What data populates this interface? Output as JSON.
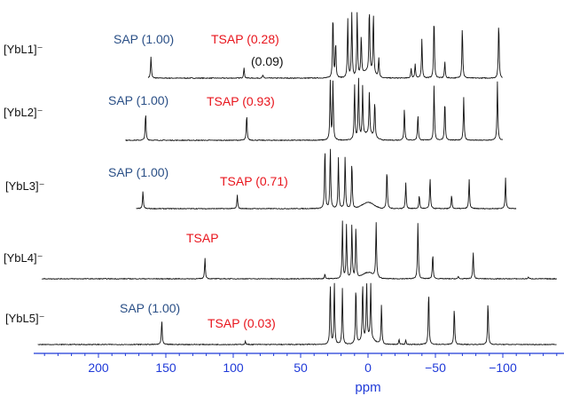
{
  "chart_data": {
    "type": "line",
    "title": "",
    "xlabel": "ppm",
    "ylabel": "",
    "xlim": [
      245,
      -140
    ],
    "x_reversed": true,
    "x_ticks": [
      {
        "value": 200,
        "label": "200"
      },
      {
        "value": 150,
        "label": "150"
      },
      {
        "value": 100,
        "label": "100"
      },
      {
        "value": 50,
        "label": "50"
      },
      {
        "value": 0,
        "label": "0"
      },
      {
        "value": -50,
        "label": "−50"
      },
      {
        "value": -100,
        "label": "−100"
      }
    ],
    "grid": false,
    "axis_color": "#1f3ad8",
    "label_colors": {
      "SAP": "#2a4f86",
      "TSAP": "#e8141c",
      "minor": "#111111"
    },
    "series": [
      {
        "name": "[YbL1]⁻",
        "compound": "YbL1",
        "x_range": [
          163,
          -100
        ],
        "peaks": [
          {
            "ppm": 161,
            "height": 0.33
          },
          {
            "ppm": 92,
            "height": 0.16
          },
          {
            "ppm": 78,
            "height": 0.05
          },
          {
            "ppm": 26,
            "height": 1.0
          },
          {
            "ppm": 24,
            "height": 0.55
          },
          {
            "ppm": 15,
            "height": 0.9
          },
          {
            "ppm": 12,
            "height": 1.0
          },
          {
            "ppm": 8,
            "height": 1.0
          },
          {
            "ppm": 5,
            "height": 0.6
          },
          {
            "ppm": -1,
            "height": 1.0
          },
          {
            "ppm": -4,
            "height": 0.95
          },
          {
            "ppm": -8,
            "height": 0.3
          },
          {
            "ppm": -32,
            "height": 0.15
          },
          {
            "ppm": -35,
            "height": 0.22
          },
          {
            "ppm": -40,
            "height": 0.6
          },
          {
            "ppm": -49,
            "height": 0.95
          },
          {
            "ppm": -57,
            "height": 0.25
          },
          {
            "ppm": -70,
            "height": 0.8
          },
          {
            "ppm": -97,
            "height": 0.88
          }
        ],
        "annotations": [
          {
            "text": "SAP (1.00)",
            "type": "SAP"
          },
          {
            "text": "TSAP (0.28)",
            "type": "TSAP"
          },
          {
            "text": "(0.09)",
            "type": "minor"
          }
        ]
      },
      {
        "name": "[YbL2]⁻",
        "compound": "YbL2",
        "x_range": [
          180,
          -100
        ],
        "peaks": [
          {
            "ppm": 165,
            "height": 0.45
          },
          {
            "ppm": 90,
            "height": 0.42
          },
          {
            "ppm": 28,
            "height": 0.95
          },
          {
            "ppm": 26,
            "height": 0.95
          },
          {
            "ppm": 10,
            "height": 0.9
          },
          {
            "ppm": 7,
            "height": 1.0
          },
          {
            "ppm": 4,
            "height": 0.8
          },
          {
            "ppm": -1,
            "height": 0.7
          },
          {
            "ppm": -5,
            "height": 0.6
          },
          {
            "ppm": -27,
            "height": 0.52
          },
          {
            "ppm": -37,
            "height": 0.42
          },
          {
            "ppm": -49,
            "height": 0.9
          },
          {
            "ppm": -57,
            "height": 0.65
          },
          {
            "ppm": -71,
            "height": 0.7
          },
          {
            "ppm": -96,
            "height": 0.95
          }
        ],
        "annotations": [
          {
            "text": "SAP (1.00)",
            "type": "SAP"
          },
          {
            "text": "TSAP (0.93)",
            "type": "TSAP"
          }
        ]
      },
      {
        "name": "[YbL3]⁻",
        "compound": "YbL3",
        "x_range": [
          172,
          -110
        ],
        "peaks": [
          {
            "ppm": 167,
            "height": 0.28
          },
          {
            "ppm": 97,
            "height": 0.22
          },
          {
            "ppm": 32,
            "height": 1.0
          },
          {
            "ppm": 28,
            "height": 1.0
          },
          {
            "ppm": 22,
            "height": 0.82
          },
          {
            "ppm": 17,
            "height": 0.85
          },
          {
            "ppm": 12,
            "height": 0.78
          },
          {
            "ppm": -14,
            "height": 0.65
          },
          {
            "ppm": -28,
            "height": 0.42
          },
          {
            "ppm": -38,
            "height": 0.22
          },
          {
            "ppm": -46,
            "height": 0.5
          },
          {
            "ppm": -62,
            "height": 0.22
          },
          {
            "ppm": -75,
            "height": 0.48
          },
          {
            "ppm": -102,
            "height": 0.5
          }
        ],
        "annotations": [
          {
            "text": "SAP (1.00)",
            "type": "SAP"
          },
          {
            "text": "TSAP (0.71)",
            "type": "TSAP"
          }
        ]
      },
      {
        "name": "[YbL4]⁻",
        "compound": "YbL4",
        "x_range": [
          242,
          -140
        ],
        "peaks": [
          {
            "ppm": 121,
            "height": 0.35
          },
          {
            "ppm": 32,
            "height": 0.08
          },
          {
            "ppm": 19,
            "height": 0.95
          },
          {
            "ppm": 16,
            "height": 0.88
          },
          {
            "ppm": 12,
            "height": 0.9
          },
          {
            "ppm": 9,
            "height": 0.88
          },
          {
            "ppm": -6,
            "height": 0.9
          },
          {
            "ppm": -37,
            "height": 0.95
          },
          {
            "ppm": -48,
            "height": 0.42
          },
          {
            "ppm": -67,
            "height": 0.04
          },
          {
            "ppm": -78,
            "height": 0.45
          },
          {
            "ppm": -119,
            "height": 0.03
          }
        ],
        "annotations": [
          {
            "text": "TSAP",
            "type": "TSAP"
          }
        ]
      },
      {
        "name": "[YbL5]⁻",
        "compound": "YbL5",
        "x_range": [
          245,
          -140
        ],
        "peaks": [
          {
            "ppm": 153,
            "height": 0.4
          },
          {
            "ppm": 91,
            "height": 0.05
          },
          {
            "ppm": 28,
            "height": 1.0
          },
          {
            "ppm": 25,
            "height": 1.0
          },
          {
            "ppm": 19,
            "height": 0.9
          },
          {
            "ppm": 9,
            "height": 0.95
          },
          {
            "ppm": 4,
            "height": 0.95
          },
          {
            "ppm": 1,
            "height": 0.9
          },
          {
            "ppm": -2,
            "height": 0.9
          },
          {
            "ppm": -10,
            "height": 0.65
          },
          {
            "ppm": -23,
            "height": 0.08
          },
          {
            "ppm": -28,
            "height": 0.07
          },
          {
            "ppm": -45,
            "height": 0.88
          },
          {
            "ppm": -64,
            "height": 0.6
          },
          {
            "ppm": -89,
            "height": 0.7
          }
        ],
        "annotations": [
          {
            "text": "SAP (1.00)",
            "type": "SAP"
          },
          {
            "text": "TSAP (0.03)",
            "type": "TSAP"
          }
        ]
      }
    ]
  }
}
